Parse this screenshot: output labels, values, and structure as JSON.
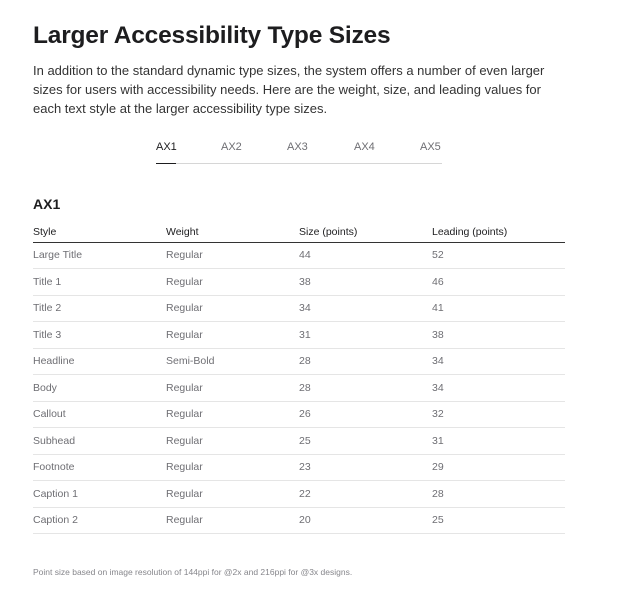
{
  "title": "Larger Accessibility Type Sizes",
  "intro": "In addition to the standard dynamic type sizes, the system offers a number of even larger sizes for users with accessibility needs. Here are the weight, size, and leading values for each text style at the larger accessibility type sizes.",
  "tabs": [
    {
      "label": "AX1",
      "active": true
    },
    {
      "label": "AX2",
      "active": false
    },
    {
      "label": "AX3",
      "active": false
    },
    {
      "label": "AX4",
      "active": false
    },
    {
      "label": "AX5",
      "active": false
    }
  ],
  "section_title": "AX1",
  "table": {
    "headers": [
      "Style",
      "Weight",
      "Size (points)",
      "Leading (points)"
    ],
    "rows": [
      [
        "Large Title",
        "Regular",
        "44",
        "52"
      ],
      [
        "Title 1",
        "Regular",
        "38",
        "46"
      ],
      [
        "Title 2",
        "Regular",
        "34",
        "41"
      ],
      [
        "Title 3",
        "Regular",
        "31",
        "38"
      ],
      [
        "Headline",
        "Semi-Bold",
        "28",
        "34"
      ],
      [
        "Body",
        "Regular",
        "28",
        "34"
      ],
      [
        "Callout",
        "Regular",
        "26",
        "32"
      ],
      [
        "Subhead",
        "Regular",
        "25",
        "31"
      ],
      [
        "Footnote",
        "Regular",
        "23",
        "29"
      ],
      [
        "Caption 1",
        "Regular",
        "22",
        "28"
      ],
      [
        "Caption 2",
        "Regular",
        "20",
        "25"
      ]
    ]
  },
  "footnote": "Point size based on image resolution of 144ppi for @2x and 216ppi for @3x designs."
}
